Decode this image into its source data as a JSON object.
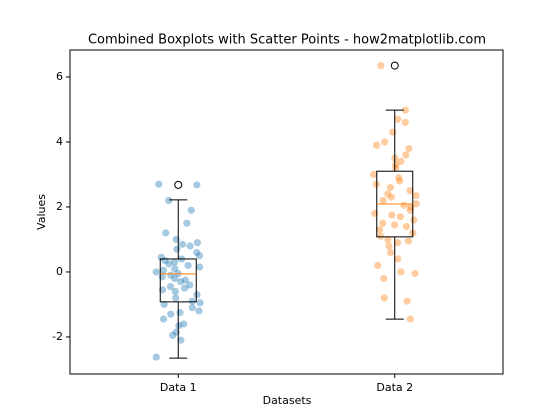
{
  "chart_data": {
    "type": "box",
    "title": "Combined Boxplots with Scatter Points - how2matplotlib.com",
    "xlabel": "Datasets",
    "ylabel": "Values",
    "categories": [
      "Data 1",
      "Data 2"
    ],
    "ylim": [
      -3.14,
      6.83
    ],
    "yticks": [
      -2,
      0,
      2,
      4,
      6
    ],
    "boxes": [
      {
        "whislo": -2.65,
        "q1": -0.92,
        "med": -0.06,
        "q3": 0.4,
        "whishi": 2.22,
        "fliers": [
          2.68
        ]
      },
      {
        "whislo": -1.45,
        "q1": 1.08,
        "med": 2.09,
        "q3": 3.1,
        "whishi": 4.98,
        "fliers": [
          6.35
        ]
      }
    ],
    "box_color": "#000000",
    "median_color": "#ff7f0e",
    "points": [
      {
        "color": "#1f77b4",
        "values": [
          -2.62,
          2.68,
          2.7,
          -2.1,
          -1.95,
          -1.85,
          -1.6,
          -1.45,
          -1.3,
          -1.25,
          -1.2,
          -1.1,
          -1.0,
          -0.95,
          -0.9,
          -0.8,
          -0.7,
          -0.6,
          -0.5,
          -0.45,
          -0.4,
          -0.3,
          -0.25,
          -0.2,
          -0.15,
          -0.1,
          -0.05,
          0,
          0.05,
          0.1,
          0.15,
          0.2,
          0.25,
          0.3,
          0.35,
          0.4,
          0.5,
          0.6,
          0.7,
          0.8,
          0.85,
          0.9,
          1.0,
          1.2,
          1.5,
          1.9,
          2.2,
          -1.65,
          -0.55,
          0.45
        ]
      },
      {
        "color": "#ff7f0e",
        "values": [
          6.35,
          4.98,
          4.7,
          4.3,
          4.0,
          3.8,
          3.6,
          3.5,
          3.3,
          3.2,
          3.0,
          2.9,
          2.8,
          2.6,
          2.5,
          2.4,
          2.3,
          2.2,
          2.1,
          2.05,
          2.0,
          1.9,
          1.8,
          1.7,
          1.6,
          1.5,
          1.4,
          1.3,
          1.2,
          1.1,
          1.0,
          0.9,
          0.8,
          0.6,
          0.4,
          0.2,
          0,
          -0.05,
          -0.2,
          -0.8,
          -0.9,
          -1.45,
          3.4,
          2.7,
          1.45,
          0.95,
          4.6,
          3.9,
          1.75,
          2.35
        ]
      }
    ]
  }
}
